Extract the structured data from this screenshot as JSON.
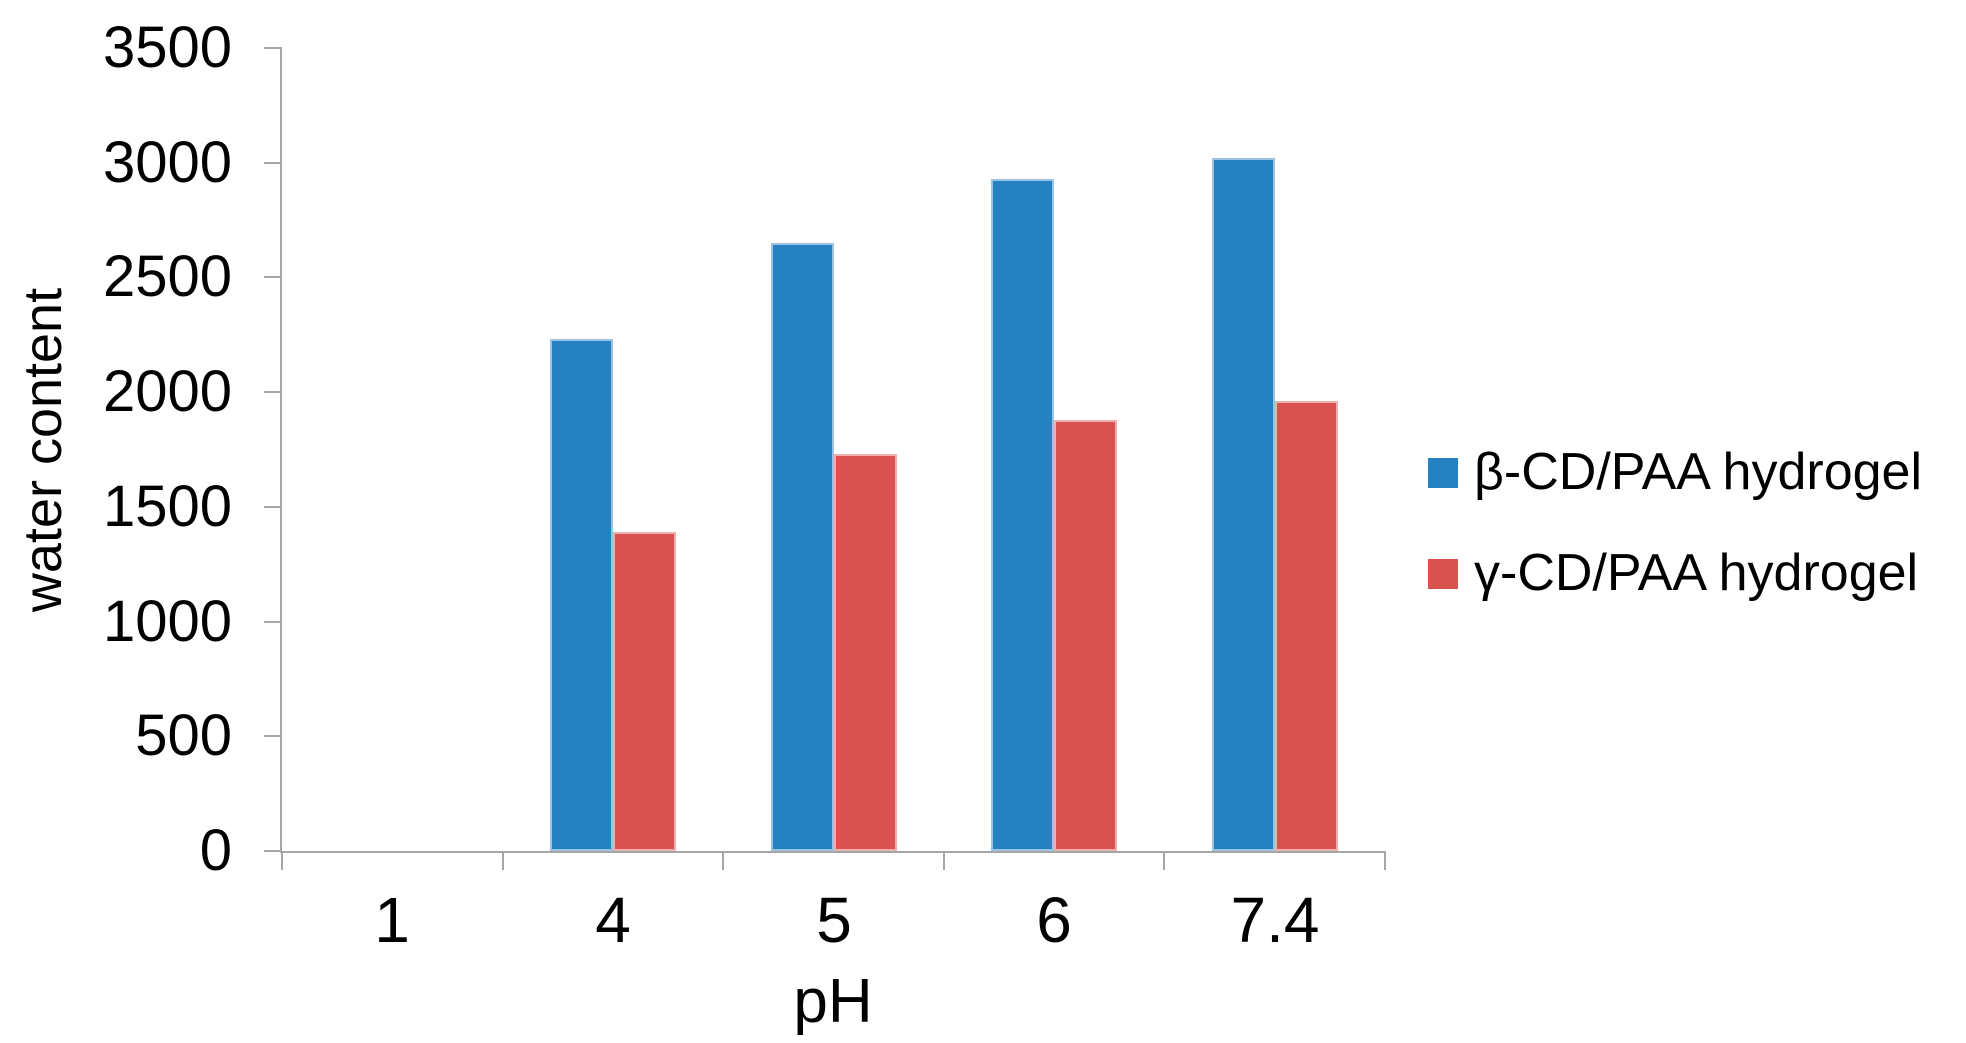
{
  "chart_data": {
    "type": "bar",
    "title": "",
    "xlabel": "pH",
    "ylabel": "water content",
    "categories": [
      "1",
      "4",
      "5",
      "6",
      "7.4"
    ],
    "series": [
      {
        "name": "β-CD/PAA hydrogel",
        "color": "#2581c0",
        "edge_color": "#9dc3e2",
        "values": [
          0,
          2230,
          2650,
          2930,
          3020
        ]
      },
      {
        "name": "γ-CD/PAA hydrogel",
        "color": "#d95250",
        "edge_color": "#eeb0af",
        "values": [
          0,
          1390,
          1730,
          1880,
          1960
        ]
      }
    ],
    "ylim": [
      0,
      3500
    ],
    "yticks": [
      0,
      500,
      1000,
      1500,
      2000,
      2500,
      3000,
      3500
    ],
    "grid": false,
    "legend_position": "right",
    "axis_color": "#a6a6a6",
    "text_color": "#000000",
    "background": "#ffffff"
  }
}
